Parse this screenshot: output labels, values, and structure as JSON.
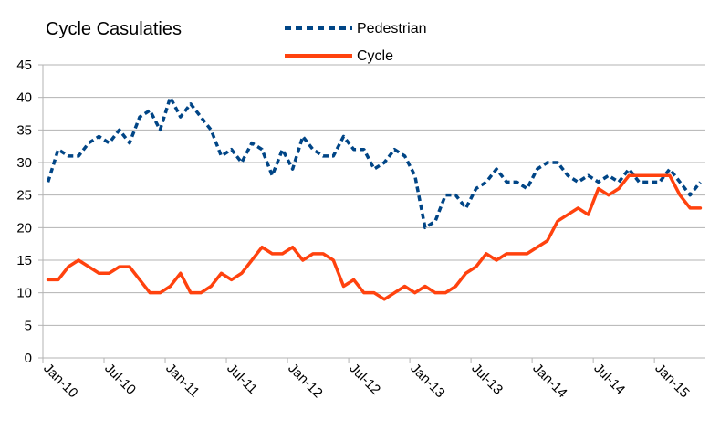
{
  "chart_data": {
    "type": "line",
    "title": "Cycle Casulaties",
    "xlabel": "",
    "ylabel": "",
    "ylim": [
      0,
      45
    ],
    "yticks": [
      0,
      5,
      10,
      15,
      20,
      25,
      30,
      35,
      40,
      45
    ],
    "grid": true,
    "legend_position": "top",
    "x_start": "Jan-10",
    "tick_labels": [
      "Jan-10",
      "Jul-10",
      "Jan-11",
      "Jul-11",
      "Jan-12",
      "Jul-12",
      "Jan-13",
      "Jul-13",
      "Jan-14",
      "Jul-14",
      "Jan-15"
    ],
    "series": [
      {
        "name": "Pedestrian",
        "color": "#004586",
        "dash": "dotted",
        "values": [
          27,
          32,
          31,
          31,
          33,
          34,
          33,
          35,
          33,
          37,
          38,
          35,
          40,
          37,
          39,
          37,
          35,
          31,
          32,
          30,
          33,
          32,
          28,
          32,
          29,
          34,
          32,
          31,
          31,
          34,
          32,
          32,
          29,
          30,
          32,
          31,
          28,
          20,
          21,
          25,
          25,
          23,
          26,
          27,
          29,
          27,
          27,
          26,
          29,
          30,
          30,
          28,
          27,
          28,
          27,
          28,
          27,
          29,
          27,
          27,
          27,
          29,
          27,
          25,
          27
        ]
      },
      {
        "name": "Cycle",
        "color": "#ff420e",
        "dash": "solid",
        "values": [
          12,
          12,
          14,
          15,
          14,
          13,
          13,
          14,
          14,
          12,
          10,
          10,
          11,
          13,
          10,
          10,
          11,
          13,
          12,
          13,
          15,
          17,
          16,
          16,
          17,
          15,
          16,
          16,
          15,
          11,
          12,
          10,
          10,
          9,
          10,
          11,
          10,
          11,
          10,
          10,
          11,
          13,
          14,
          16,
          15,
          16,
          16,
          16,
          17,
          18,
          21,
          22,
          23,
          22,
          26,
          25,
          26,
          28,
          28,
          28,
          28,
          28,
          25,
          23,
          23
        ]
      }
    ]
  }
}
